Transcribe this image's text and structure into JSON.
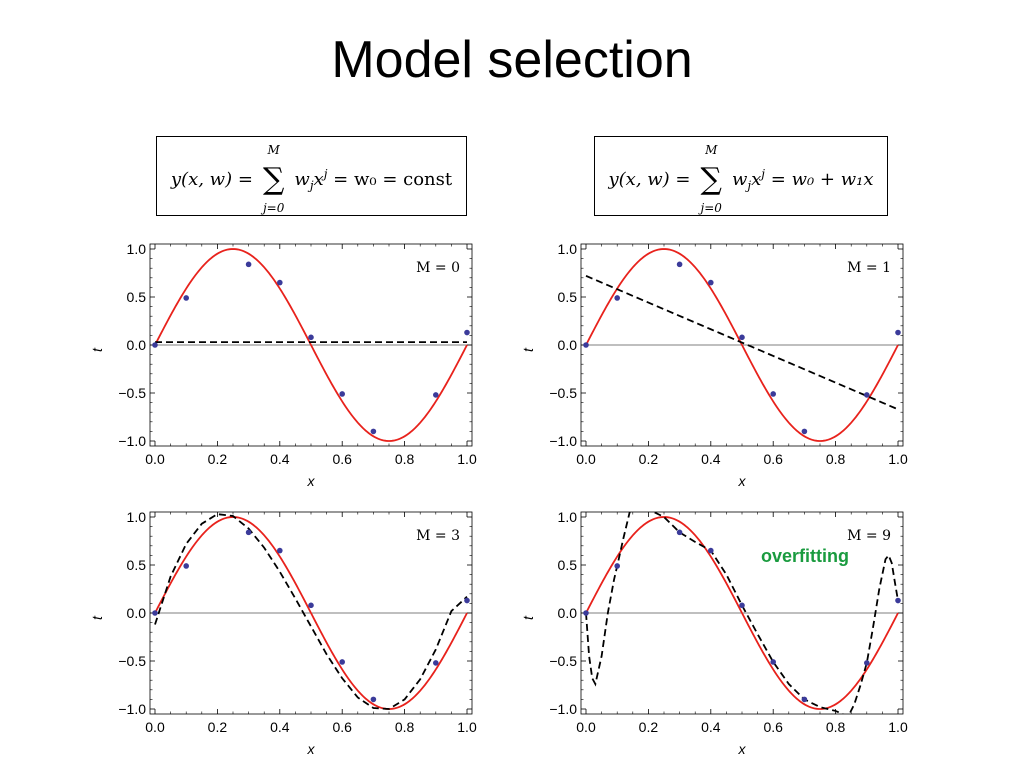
{
  "slide": {
    "title": "Model selection",
    "annotation": "overfitting"
  },
  "formulas": [
    {
      "lhs": "y(x, w) =",
      "sum_upper": "M",
      "sum_lower": "j=0",
      "term": "w",
      "term_sub": "j",
      "term_x": "x",
      "term_sup": "j",
      "rhs": "= w₀ = const"
    },
    {
      "lhs": "y(x, w) =",
      "sum_upper": "M",
      "sum_lower": "j=0",
      "term": "w",
      "term_sub": "j",
      "term_x": "x",
      "term_sup": "j",
      "rhs": "= w₀ + w₁x"
    }
  ],
  "colors": {
    "true_curve": "#e8221c",
    "fit_curve": "#000000",
    "points": "#3b3b9a",
    "annotation": "#1a9b3f"
  },
  "chart_data": [
    {
      "type": "line",
      "label": "M = 0",
      "xlabel": "x",
      "ylabel": "t",
      "xlim": [
        0,
        1
      ],
      "ylim": [
        -1,
        1
      ],
      "x_ticks": [
        "0.0",
        "0.2",
        "0.4",
        "0.6",
        "0.8",
        "1.0"
      ],
      "y_ticks": [
        "1.0",
        "0.5",
        "0.0",
        "−0.5",
        "−1.0"
      ],
      "points": {
        "x": [
          0.0,
          0.1,
          0.3,
          0.4,
          0.5,
          0.6,
          0.7,
          0.9,
          1.0
        ],
        "y": [
          0.0,
          0.49,
          0.84,
          0.65,
          0.08,
          -0.51,
          -0.9,
          -0.52,
          0.13
        ]
      },
      "true_function": "sin(2πx)",
      "fit_coefficients": [
        0.03
      ]
    },
    {
      "type": "line",
      "label": "M = 1",
      "xlabel": "x",
      "ylabel": "t",
      "xlim": [
        0,
        1
      ],
      "ylim": [
        -1,
        1
      ],
      "x_ticks": [
        "0.0",
        "0.2",
        "0.4",
        "0.6",
        "0.8",
        "1.0"
      ],
      "y_ticks": [
        "1.0",
        "0.5",
        "0.0",
        "−0.5",
        "−1.0"
      ],
      "points": {
        "x": [
          0.0,
          0.1,
          0.3,
          0.4,
          0.5,
          0.6,
          0.7,
          0.9,
          1.0
        ],
        "y": [
          0.0,
          0.49,
          0.84,
          0.65,
          0.08,
          -0.51,
          -0.9,
          -0.52,
          0.13
        ]
      },
      "true_function": "sin(2πx)",
      "fit_coefficients": [
        0.72,
        -1.39
      ]
    },
    {
      "type": "line",
      "label": "M = 3",
      "xlabel": "x",
      "ylabel": "t",
      "xlim": [
        0,
        1
      ],
      "ylim": [
        -1,
        1
      ],
      "x_ticks": [
        "0.0",
        "0.2",
        "0.4",
        "0.6",
        "0.8",
        "1.0"
      ],
      "y_ticks": [
        "1.0",
        "0.5",
        "0.0",
        "−0.5",
        "−1.0"
      ],
      "points": {
        "x": [
          0.0,
          0.1,
          0.3,
          0.4,
          0.5,
          0.6,
          0.7,
          0.9,
          1.0
        ],
        "y": [
          0.0,
          0.49,
          0.84,
          0.65,
          0.08,
          -0.51,
          -0.9,
          -0.52,
          0.13
        ]
      },
      "true_function": "sin(2πx)",
      "fit_curve": {
        "x": [
          0.0,
          0.05,
          0.1,
          0.15,
          0.2,
          0.25,
          0.3,
          0.35,
          0.4,
          0.45,
          0.5,
          0.55,
          0.6,
          0.65,
          0.7,
          0.75,
          0.8,
          0.85,
          0.9,
          0.95,
          1.0
        ],
        "y": [
          -0.12,
          0.38,
          0.72,
          0.93,
          1.03,
          1.01,
          0.88,
          0.68,
          0.43,
          0.15,
          -0.14,
          -0.43,
          -0.68,
          -0.88,
          -0.99,
          -1.0,
          -0.9,
          -0.69,
          -0.38,
          0.02,
          0.17
        ]
      }
    },
    {
      "type": "line",
      "label": "M = 9",
      "xlabel": "x",
      "ylabel": "t",
      "xlim": [
        0,
        1
      ],
      "ylim": [
        -1,
        1
      ],
      "x_ticks": [
        "0.0",
        "0.2",
        "0.4",
        "0.6",
        "0.8",
        "1.0"
      ],
      "y_ticks": [
        "1.0",
        "0.5",
        "0.0",
        "−0.5",
        "−1.0"
      ],
      "points": {
        "x": [
          0.0,
          0.1,
          0.3,
          0.4,
          0.5,
          0.6,
          0.7,
          0.9,
          1.0
        ],
        "y": [
          0.0,
          0.49,
          0.84,
          0.65,
          0.08,
          -0.51,
          -0.9,
          -0.52,
          0.13
        ]
      },
      "true_function": "sin(2πx)",
      "fit_curve": {
        "x": [
          0.0,
          0.01,
          0.02,
          0.03,
          0.05,
          0.07,
          0.09,
          0.1,
          0.12,
          0.14,
          0.16,
          0.2,
          0.25,
          0.3,
          0.35,
          0.4,
          0.45,
          0.5,
          0.55,
          0.6,
          0.65,
          0.7,
          0.75,
          0.8,
          0.84,
          0.86,
          0.88,
          0.9,
          0.92,
          0.94,
          0.96,
          0.97,
          0.98,
          0.99,
          1.0
        ],
        "y": [
          0.0,
          -0.45,
          -0.68,
          -0.74,
          -0.45,
          0.0,
          0.35,
          0.49,
          0.78,
          1.05,
          1.1,
          1.08,
          1.0,
          0.84,
          0.74,
          0.65,
          0.4,
          0.08,
          -0.22,
          -0.51,
          -0.74,
          -0.9,
          -0.98,
          -1.02,
          -1.08,
          -0.95,
          -0.75,
          -0.52,
          -0.15,
          0.25,
          0.56,
          0.6,
          0.52,
          0.32,
          0.13
        ]
      }
    }
  ]
}
